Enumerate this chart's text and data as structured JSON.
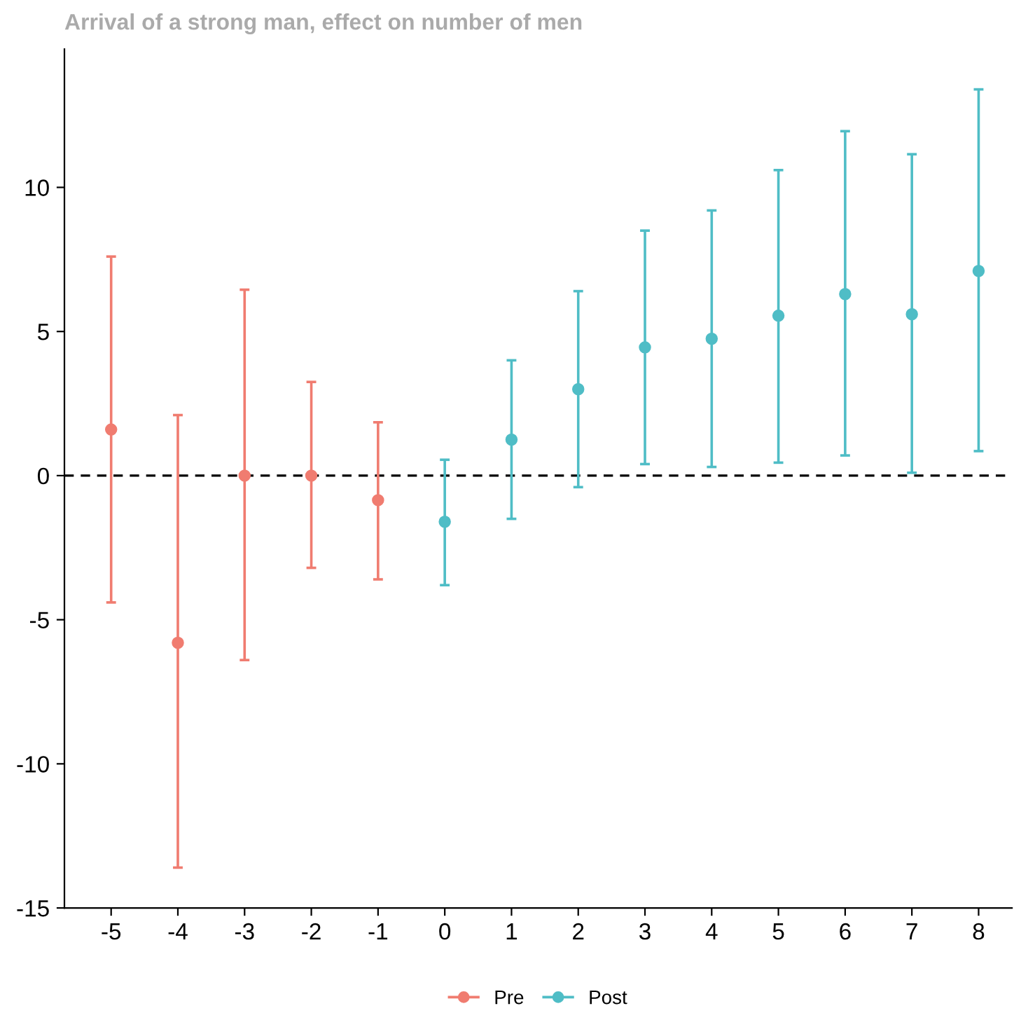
{
  "chart_data": {
    "type": "scatter",
    "title": "Arrival of a strong man, effect on number of men",
    "series": [
      {
        "name": "Pre",
        "color": "#f07c70",
        "x": [
          -5,
          -4,
          -3,
          -2,
          -1
        ],
        "values": [
          1.6,
          -5.8,
          0,
          0,
          -0.85
        ],
        "errors": [
          [
            -4.4,
            7.6
          ],
          [
            -13.6,
            2.1
          ],
          [
            -6.4,
            6.45
          ],
          [
            -3.2,
            3.25
          ],
          [
            -3.6,
            1.85
          ]
        ]
      },
      {
        "name": "Post",
        "color": "#4fbdc6",
        "x": [
          0,
          1,
          2,
          3,
          4,
          5,
          6,
          7,
          8
        ],
        "values": [
          -1.6,
          1.25,
          3.0,
          4.45,
          4.75,
          5.55,
          6.3,
          5.6,
          7.1
        ],
        "errors": [
          [
            -3.8,
            0.55
          ],
          [
            -1.5,
            4.0
          ],
          [
            -0.4,
            6.4
          ],
          [
            0.4,
            8.5
          ],
          [
            0.3,
            9.2
          ],
          [
            0.45,
            10.6
          ],
          [
            0.7,
            11.95
          ],
          [
            0.1,
            11.15
          ],
          [
            0.85,
            13.4
          ]
        ]
      }
    ],
    "xlim": [
      -5.7,
      8.5
    ],
    "xticks": [
      -5,
      -4,
      -3,
      -2,
      -1,
      0,
      1,
      2,
      3,
      4,
      5,
      6,
      7,
      8
    ],
    "ylim": [
      -15,
      14.8
    ],
    "yticks": [
      -15,
      -10,
      -5,
      0,
      5,
      10
    ],
    "ref_lines": [
      {
        "axis": "y",
        "value": 0,
        "label": null,
        "color": "#000000",
        "line_style": "dashed"
      }
    ],
    "marker": "circle",
    "legend": "bottom",
    "grid": false
  }
}
